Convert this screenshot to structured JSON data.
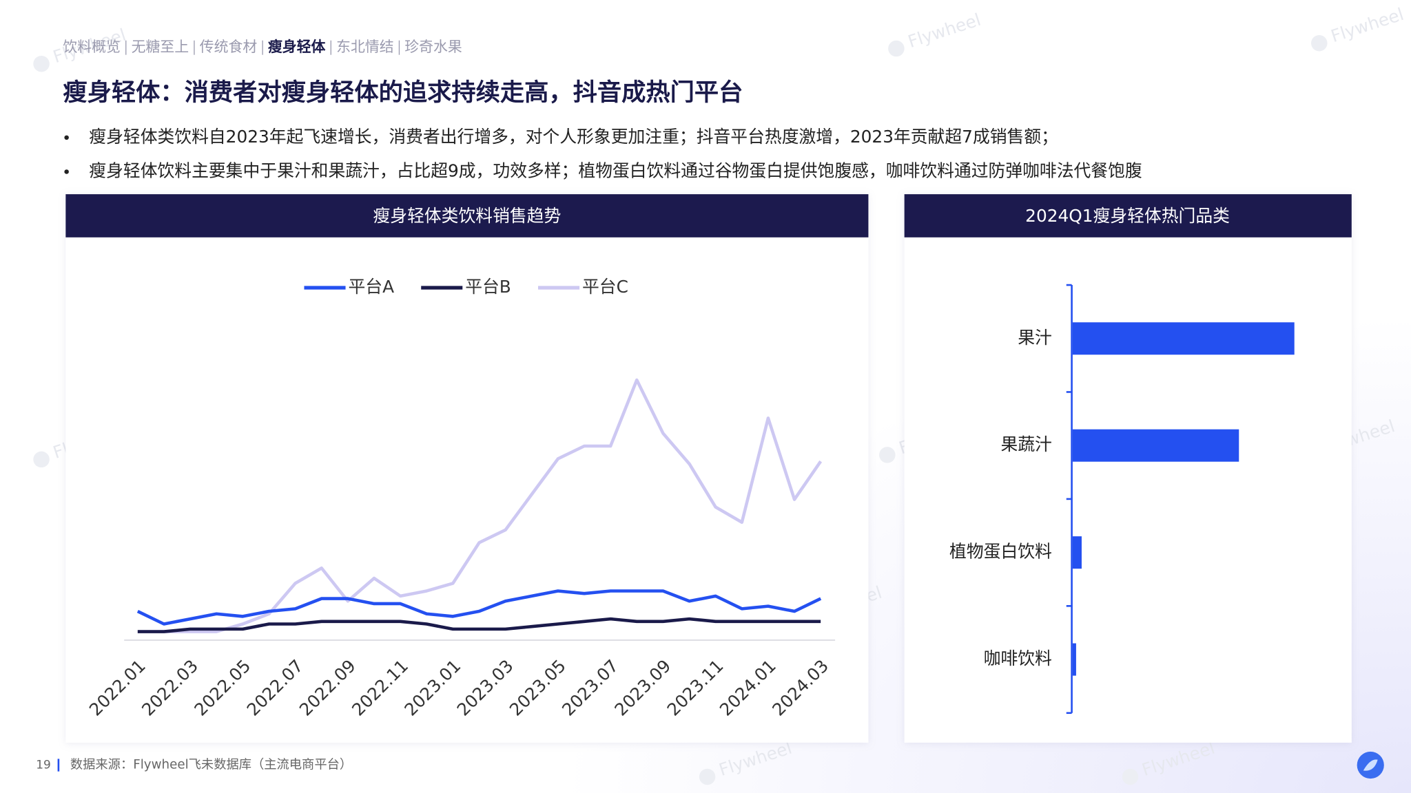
{
  "nav": {
    "items": [
      "饮料概览",
      "无糖至上",
      "传统食材",
      "瘦身轻体",
      "东北情结",
      "珍奇水果"
    ],
    "active": 3
  },
  "title": "瘦身轻体：消费者对瘦身轻体的追求持续走高，抖音成热门平台",
  "bullets": [
    "瘦身轻体类饮料自2023年起飞速增长，消费者出行增多，对个人形象更加注重；抖音平台热度激增，2023年贡献超7成销售额；",
    "瘦身轻体饮料主要集中于果汁和果蔬汁，占比超9成，功效多样；植物蛋白饮料通过谷物蛋白提供饱腹感，咖啡饮料通过防弹咖啡法代餐饱腹"
  ],
  "watermark": "Flywheel",
  "footer": {
    "page": "19",
    "source": "数据来源：Flywheel飞未数据库（主流电商平台）"
  },
  "chart_data": [
    {
      "type": "line",
      "title": "瘦身轻体类饮料销售趋势",
      "categories": [
        "2022.01",
        null,
        "2022.03",
        null,
        "2022.05",
        null,
        "2022.07",
        null,
        "2022.09",
        null,
        "2022.11",
        null,
        "2023.01",
        null,
        "2023.03",
        null,
        "2023.05",
        null,
        "2023.07",
        null,
        "2023.09",
        null,
        "2023.11",
        null,
        "2024.01",
        null,
        "2024.03"
      ],
      "series": [
        {
          "name": "平台A",
          "color": "#2450f0",
          "values": [
            11,
            6,
            8,
            10,
            9,
            11,
            12,
            16,
            16,
            14,
            14,
            10,
            9,
            11,
            15,
            17,
            19,
            18,
            19,
            19,
            19,
            15,
            17,
            12,
            13,
            11,
            16
          ]
        },
        {
          "name": "平台B",
          "color": "#1a1a4a",
          "values": [
            3,
            3,
            4,
            4,
            4,
            6,
            6,
            7,
            7,
            7,
            7,
            6,
            4,
            4,
            4,
            5,
            6,
            7,
            8,
            7,
            7,
            8,
            7,
            7,
            7,
            7,
            7
          ]
        },
        {
          "name": "平台C",
          "color": "#cdc8f2",
          "values": [
            3,
            3,
            3,
            3,
            6,
            10,
            22,
            28,
            15,
            24,
            17,
            19,
            22,
            38,
            43,
            57,
            71,
            76,
            76,
            102,
            81,
            69,
            52,
            46,
            87,
            55,
            70
          ]
        }
      ],
      "ylim": [
        0,
        110
      ],
      "legend": "top"
    },
    {
      "type": "hbar",
      "title": "2024Q1瘦身轻体热门品类",
      "categories": [
        "果汁",
        "果蔬汁",
        "植物蛋白饮料",
        "咖啡饮料"
      ],
      "values": [
        64,
        48,
        2.6,
        1
      ],
      "color": "#2450f0",
      "xlim": [
        0,
        80
      ]
    }
  ]
}
